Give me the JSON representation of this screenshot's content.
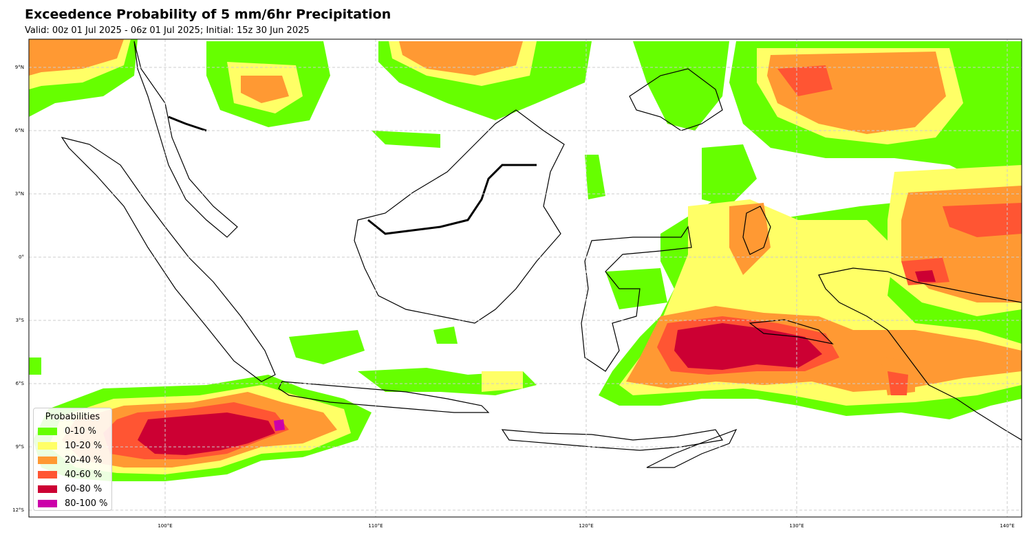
{
  "title": "Exceedence Probability of 5 mm/6hr Precipitation",
  "subtitle": "Valid: 00z 01 Jul 2025 - 06z 01 Jul 2025; Initial: 15z 30 Jun 2025",
  "map": {
    "lon_range": [
      93.5,
      140.7
    ],
    "lat_range": [
      -12.3,
      10.4
    ],
    "lon_ticks": [
      {
        "value": 100,
        "label": "100°E"
      },
      {
        "value": 110,
        "label": "110°E"
      },
      {
        "value": 120,
        "label": "120°E"
      },
      {
        "value": 130,
        "label": "130°E"
      },
      {
        "value": 140,
        "label": "140°E"
      }
    ],
    "lat_ticks": [
      {
        "value": 9,
        "label": "9°N"
      },
      {
        "value": 6,
        "label": "6°N"
      },
      {
        "value": 3,
        "label": "3°N"
      },
      {
        "value": 0,
        "label": "0°"
      },
      {
        "value": -3,
        "label": "3°S"
      },
      {
        "value": -6,
        "label": "6°S"
      },
      {
        "value": -9,
        "label": "9°S"
      },
      {
        "value": -12,
        "label": "12°S"
      }
    ],
    "gridlines": true,
    "coastline_color": "#000000"
  },
  "legend": {
    "title": "Probabilities",
    "placement": "lower-left",
    "items": [
      {
        "label": "0-10 %",
        "color": "#66ff00"
      },
      {
        "label": "10-20 %",
        "color": "#ffff66"
      },
      {
        "label": "20-40 %",
        "color": "#ff9933"
      },
      {
        "label": "40-60 %",
        "color": "#ff5533"
      },
      {
        "label": "60-80 %",
        "color": "#cc0033"
      },
      {
        "label": "80-100 %",
        "color": "#cc00aa"
      }
    ]
  }
}
